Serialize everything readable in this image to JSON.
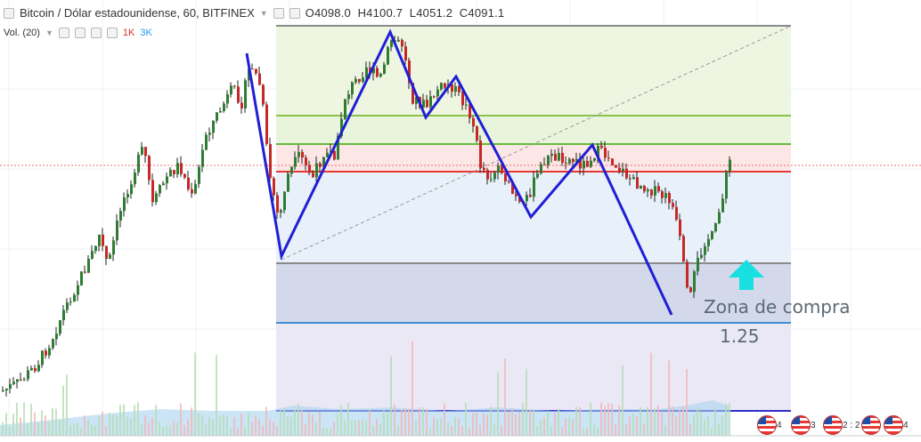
{
  "header": {
    "symbol_title": "Bitcoin / Dólar estadounidense, 60, BITFINEX",
    "ohlc": {
      "open_label": "O",
      "open": "4098.0",
      "high_label": "H",
      "high": "4100.7",
      "low_label": "L",
      "low": "4051.2",
      "close_label": "C",
      "close": "4091.1"
    }
  },
  "volume_indicator": {
    "label": "Vol. (20)",
    "link_1k": "1K",
    "link_3k": "3K"
  },
  "annotations": {
    "buy_zone": "Zona de compra",
    "fib_level": "1.25"
  },
  "event_badges": [
    {
      "count": "4"
    },
    {
      "count": "3"
    },
    {
      "count": "2 : 2"
    },
    {
      "count": "4"
    }
  ],
  "colors": {
    "pattern_line": "#1f1fd6",
    "up_candle": "#2e7d32",
    "down_candle": "#c62828",
    "fib_green": "#8bc34a",
    "fib_red": "#e53935",
    "fib_blue": "#1e88e5",
    "arrow_cyan": "#19e0e0",
    "volume_fill": "#a9d4f0"
  },
  "icons": [
    "collapse-square-icon",
    "settings-gear-icon",
    "eye-icon",
    "close-icon",
    "up-arrow-icon"
  ]
}
